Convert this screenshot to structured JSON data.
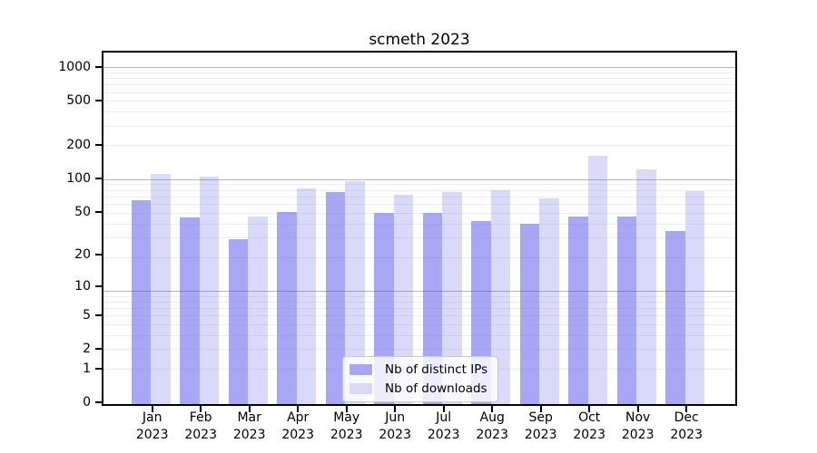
{
  "title": "scmeth 2023",
  "chart_data": {
    "type": "bar",
    "title": "scmeth 2023",
    "y_scale": "log1p",
    "grid": "horizontal-log",
    "xlabel": "",
    "ylabel": "",
    "ylim": [
      0,
      1350
    ],
    "y_ticks": [
      1000,
      500,
      200,
      100,
      50,
      20,
      10,
      5,
      2,
      1,
      0
    ],
    "categories": [
      "Jan\n2023",
      "Feb\n2023",
      "Mar\n2023",
      "Apr\n2023",
      "May\n2023",
      "Jun\n2023",
      "Jul\n2023",
      "Aug\n2023",
      "Sep\n2023",
      "Oct\n2023",
      "Nov\n2023",
      "Dec\n2023"
    ],
    "series": [
      {
        "name": "Nb of distinct IPs",
        "color": "#a7a7f5",
        "values": [
          63,
          44,
          28,
          50,
          76,
          49,
          49,
          41,
          39,
          45,
          45,
          33
        ]
      },
      {
        "name": "Nb of downloads",
        "color": "#d9d9fa",
        "values": [
          110,
          103,
          45,
          81,
          95,
          71,
          75,
          78,
          66,
          160,
          121,
          77
        ]
      }
    ],
    "legend_position": "bottom-center"
  },
  "colors": {
    "ip_bar": "#a7a7f5",
    "downloads_bar": "#d9d9fa",
    "grid_major": "#bcbcbc",
    "grid_minor": "#ececec",
    "axis": "#000000",
    "background": "#ffffff"
  }
}
